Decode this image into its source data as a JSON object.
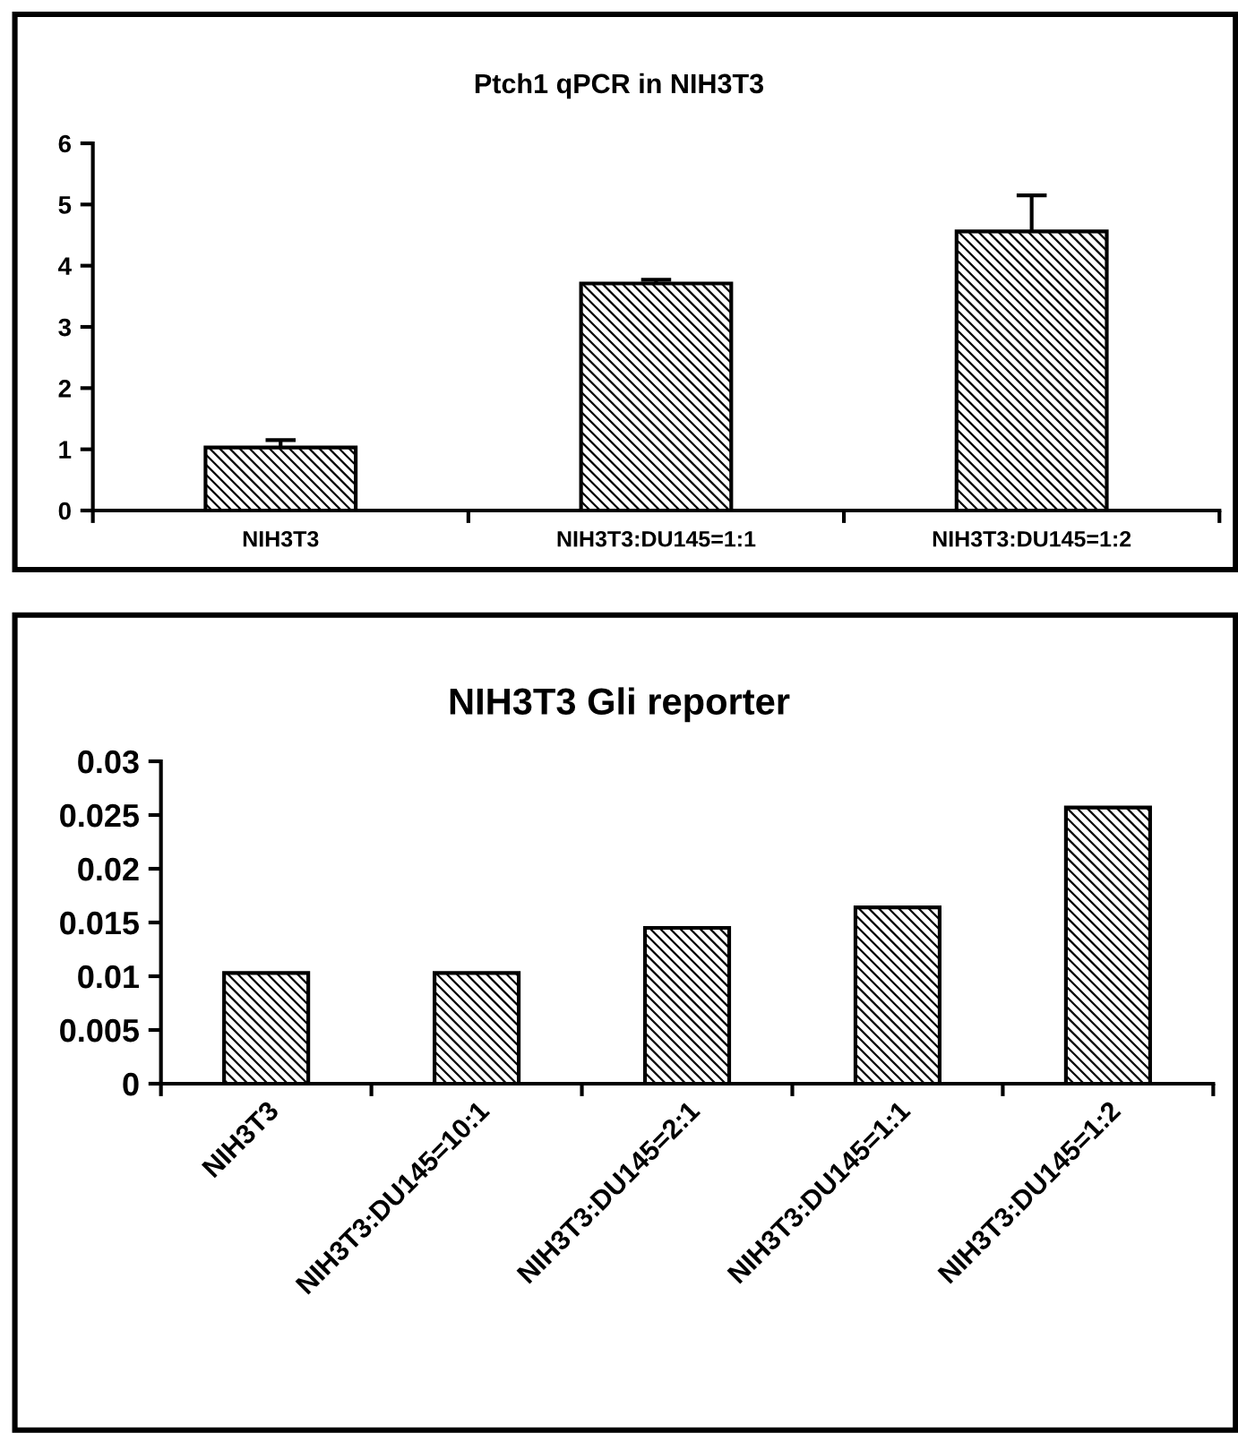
{
  "chart_data": [
    {
      "type": "bar",
      "title": "Ptch1 qPCR in NIH3T3",
      "categories": [
        "NIH3T3",
        "NIH3T3:DU145=1:1",
        "NIH3T3:DU145=1:2"
      ],
      "values": [
        1.03,
        3.71,
        4.56
      ],
      "errors": [
        [
          1.03,
          1.15
        ],
        [
          3.71,
          3.77
        ],
        [
          4.56,
          5.15
        ]
      ],
      "color": "#000000",
      "ylim": [
        0,
        6
      ],
      "yticks": [
        0,
        1,
        2,
        3,
        4,
        5,
        6
      ],
      "grid": false,
      "legend": false
    },
    {
      "type": "bar",
      "title": "NIH3T3 Gli reporter",
      "categories": [
        "NIH3T3",
        "NIH3T3:DU145=10:1",
        "NIH3T3:DU145=2:1",
        "NIH3T3:DU145=1:1",
        "NIH3T3:DU145=1:2"
      ],
      "values": [
        0.0103,
        0.0103,
        0.0145,
        0.0164,
        0.0257
      ],
      "color": "#000000",
      "ylim": [
        0,
        0.03
      ],
      "yticks": [
        0,
        0.005,
        0.01,
        0.015,
        0.02,
        0.025,
        0.03
      ],
      "grid": false,
      "legend": false
    }
  ]
}
